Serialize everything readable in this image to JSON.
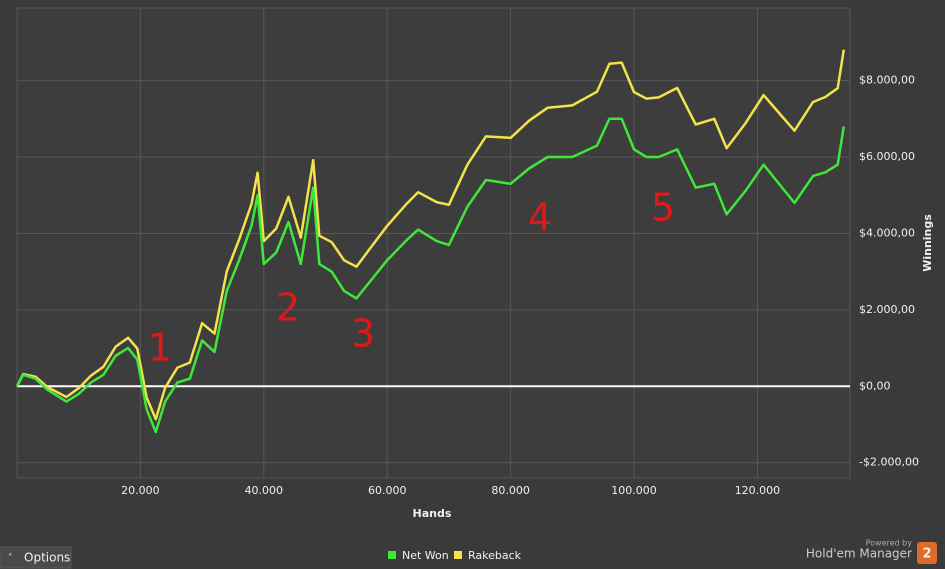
{
  "chart_data": {
    "type": "line",
    "x_label": "Hands",
    "y_label": "Winnings",
    "x": [
      0,
      1000,
      3000,
      5000,
      8000,
      10000,
      12000,
      14000,
      16000,
      18000,
      19500,
      21000,
      22500,
      24000,
      26000,
      28000,
      30000,
      32000,
      34000,
      36000,
      38000,
      39000,
      40000,
      42000,
      44000,
      46000,
      48000,
      49000,
      51000,
      53000,
      55000,
      57000,
      60000,
      63000,
      65000,
      68000,
      70000,
      73000,
      76000,
      80000,
      83000,
      86000,
      90000,
      94000,
      96000,
      98000,
      100000,
      102000,
      104000,
      107000,
      110000,
      113000,
      115000,
      118000,
      121000,
      124000,
      126000,
      129000,
      131000,
      133000,
      134000
    ],
    "series": [
      {
        "name": "Net Won",
        "color": "#3ee83a",
        "values": [
          0,
          300,
          200,
          -100,
          -400,
          -200,
          100,
          300,
          800,
          1000,
          700,
          -600,
          -1200,
          -400,
          100,
          200,
          1200,
          900,
          2500,
          3300,
          4200,
          5000,
          3200,
          3500,
          4300,
          3200,
          5200,
          3200,
          3000,
          2500,
          2300,
          2700,
          3300,
          3800,
          4100,
          3800,
          3700,
          4700,
          5400,
          5300,
          5700,
          6000,
          6000,
          6300,
          7000,
          7000,
          6200,
          6000,
          6000,
          6200,
          5200,
          5300,
          4500,
          5100,
          5800,
          5200,
          4800,
          5500,
          5600,
          5800,
          6800
        ]
      },
      {
        "name": "Rakeback",
        "color": "#f2e34a",
        "values": [
          0,
          320,
          250,
          -30,
          -280,
          -50,
          280,
          510,
          1040,
          1270,
          990,
          -290,
          -860,
          -40,
          490,
          620,
          1650,
          1380,
          3010,
          3840,
          4770,
          5590,
          3800,
          4130,
          4960,
          3890,
          5920,
          3940,
          3770,
          3300,
          3130,
          3560,
          4200,
          4750,
          5080,
          4820,
          4750,
          5800,
          6540,
          6500,
          6950,
          7290,
          7350,
          7710,
          8440,
          8470,
          7700,
          7530,
          7560,
          7810,
          6850,
          7000,
          6230,
          6870,
          7620,
          7060,
          6690,
          7440,
          7570,
          7800,
          8810
        ]
      }
    ],
    "xlim": [
      0,
      135000
    ],
    "ylim": [
      -2400,
      9900
    ],
    "xticks": [
      {
        "value": 20000,
        "label": "20.000"
      },
      {
        "value": 40000,
        "label": "40.000"
      },
      {
        "value": 60000,
        "label": "60.000"
      },
      {
        "value": 80000,
        "label": "80.000"
      },
      {
        "value": 100000,
        "label": "100.000"
      },
      {
        "value": 120000,
        "label": "120.000"
      }
    ],
    "yticks": [
      {
        "value": -2000,
        "label": "-$2.000,00"
      },
      {
        "value": 0,
        "label": "$0,00"
      },
      {
        "value": 2000,
        "label": "$2.000,00"
      },
      {
        "value": 4000,
        "label": "$4.000,00"
      },
      {
        "value": 6000,
        "label": "$6.000,00"
      },
      {
        "value": 8000,
        "label": "$8.000,00"
      }
    ],
    "grid": true,
    "zero_line_color": "#ffffff",
    "annotations": [
      "1",
      "2",
      "3",
      "4",
      "5"
    ],
    "annotation_color": "#e01818"
  },
  "ui": {
    "options_button": "Options",
    "powered_by": "Powered by",
    "brand": "Hold'em Manager",
    "brand_badge": "2"
  }
}
